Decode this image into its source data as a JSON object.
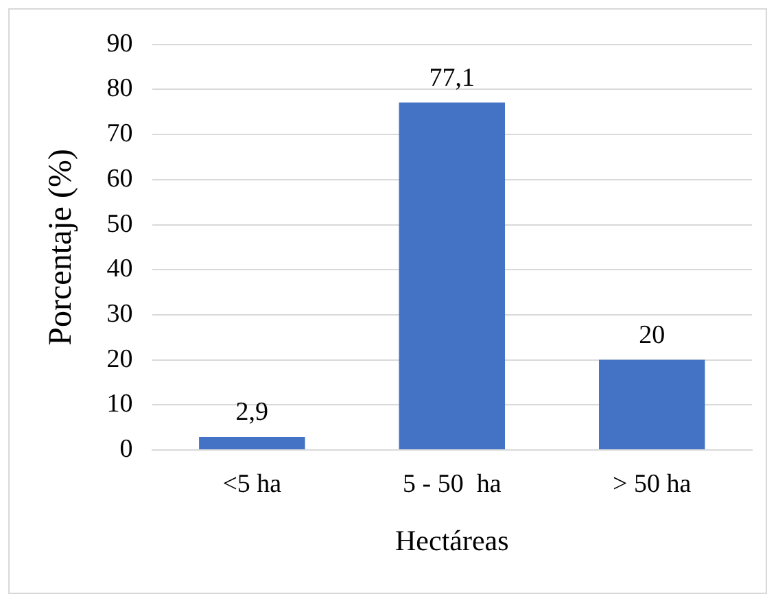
{
  "chart_data": {
    "type": "bar",
    "xlabel": "Hectáreas",
    "ylabel": "Porcentaje (%)",
    "categories": [
      "<5 ha",
      "5 - 50  ha",
      "> 50 ha"
    ],
    "values": [
      2.9,
      77.1,
      20
    ],
    "color": "#4472c4",
    "value_labels": [
      "2,9",
      "77,1",
      "20"
    ],
    "ylim": [
      0,
      90
    ],
    "yticks": [
      0,
      10,
      20,
      30,
      40,
      50,
      60,
      70,
      80,
      90
    ],
    "grid": "y",
    "legend": false
  }
}
